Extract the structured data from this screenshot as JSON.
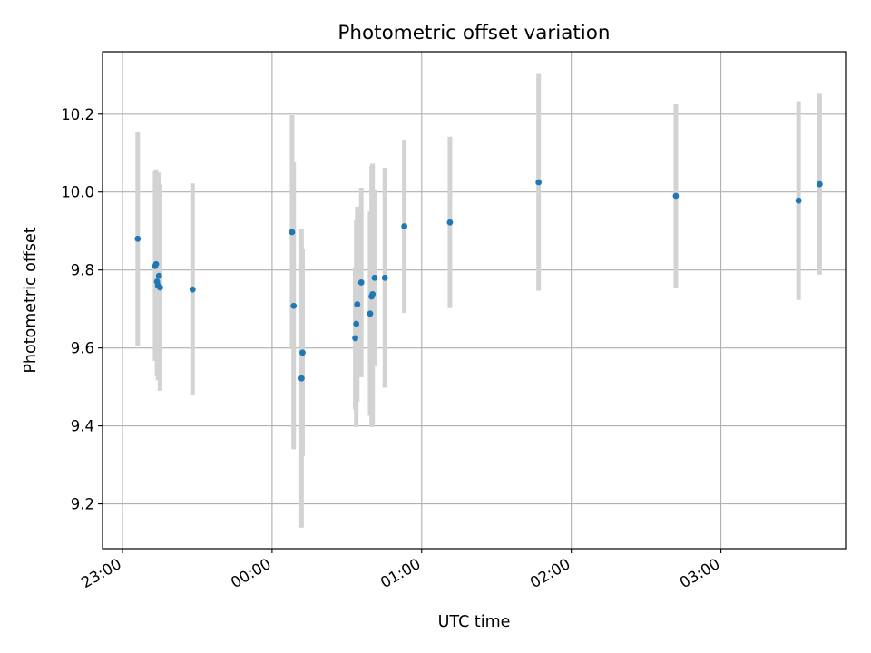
{
  "chart_data": {
    "type": "scatter",
    "title": "Photometric offset variation",
    "xlabel": "UTC time",
    "ylabel": "Photometric offset",
    "xlim": [
      "22:52",
      "27:50"
    ],
    "ylim": [
      9.085,
      10.36
    ],
    "grid": true,
    "x_ticks": [
      "23:00",
      "00:00",
      "01:00",
      "02:00",
      "03:00"
    ],
    "y_ticks": [
      "9.2",
      "9.4",
      "9.6",
      "9.8",
      "10.0",
      "10.2"
    ],
    "x_tick_values": [
      "23:00",
      "24:00",
      "25:00",
      "26:00",
      "27:00"
    ],
    "y_tick_values": [
      9.2,
      9.4,
      9.6,
      9.8,
      10.0,
      10.2
    ],
    "error_color": "#d3d3d3",
    "marker_color": "#1f77b4",
    "series": [
      {
        "x": [
          "23:06:07",
          "23:13:05",
          "23:13:29",
          "23:13:52",
          "23:14:16",
          "23:14:40",
          "23:15:05",
          "23:28:07",
          "24:08:01",
          "24:08:40",
          "24:11:49",
          "24:12:13",
          "24:33:22",
          "24:33:46",
          "24:34:10",
          "24:35:46",
          "24:39:19",
          "24:39:55",
          "24:40:19",
          "24:41:07",
          "24:45:14",
          "24:53:02",
          "25:11:20",
          "25:46:54",
          "26:41:56",
          "27:31:08",
          "27:39:35"
        ],
        "y": [
          9.88,
          9.81,
          9.815,
          9.77,
          9.76,
          9.785,
          9.755,
          9.75,
          9.897,
          9.708,
          9.522,
          9.588,
          9.625,
          9.662,
          9.712,
          9.768,
          9.688,
          9.732,
          9.738,
          9.78,
          9.78,
          9.912,
          9.922,
          10.025,
          9.99,
          9.978,
          10.02
        ],
        "err": [
          0.275,
          0.243,
          0.243,
          0.243,
          0.243,
          0.265,
          0.265,
          0.272,
          0.3,
          0.368,
          0.383,
          0.265,
          0.183,
          0.265,
          0.25,
          0.243,
          0.262,
          0.335,
          0.335,
          0.227,
          0.282,
          0.222,
          0.22,
          0.278,
          0.235,
          0.255,
          0.232
        ]
      }
    ]
  }
}
